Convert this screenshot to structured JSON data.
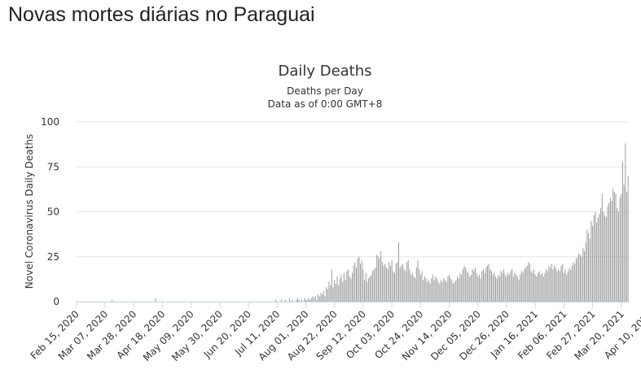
{
  "page": {
    "heading": "Novas mortes diárias no Paraguai"
  },
  "chart_data": {
    "type": "bar",
    "title": "Daily Deaths",
    "subtitle": [
      "Deaths per Day",
      "Data as of 0:00 GMT+8"
    ],
    "xlabel": "",
    "ylabel": "Novel Coronavirus Daily Deaths",
    "ylim": [
      0,
      100
    ],
    "yticks": [
      0,
      25,
      50,
      75,
      100
    ],
    "grid": true,
    "bar_color": "#a0a0a0",
    "start_date": "2020-02-15",
    "x_tick_labels": [
      "Feb 15, 2020",
      "Mar 07, 2020",
      "Mar 28, 2020",
      "Apr 18, 2020",
      "May 09, 2020",
      "May 30, 2020",
      "Jun 20, 2020",
      "Jul 11, 2020",
      "Aug 01, 2020",
      "Aug 22, 2020",
      "Sep 12, 2020",
      "Oct 03, 2020",
      "Oct 24, 2020",
      "Nov 14, 2020",
      "Dec 05, 2020",
      "Dec 26, 2020",
      "Jan 16, 2021",
      "Feb 06, 2021",
      "Feb 27, 2021",
      "Mar 20, 2021",
      "Apr 10, 2021"
    ],
    "values": [
      0,
      0,
      0,
      0,
      0,
      0,
      0,
      0,
      0,
      0,
      0,
      0,
      0,
      0,
      0,
      0,
      0,
      0,
      0,
      0,
      0,
      0,
      0,
      0,
      0,
      0,
      1,
      0,
      0,
      0,
      0,
      0,
      0,
      0,
      0,
      0,
      0,
      0,
      0,
      0,
      0,
      0,
      0,
      0,
      0,
      0,
      0,
      0,
      0,
      0,
      0,
      0,
      0,
      0,
      0,
      0,
      0,
      0,
      2,
      0,
      0,
      0,
      0,
      0,
      0,
      0,
      0,
      0,
      0,
      0,
      0,
      0,
      0,
      0,
      0,
      0,
      0,
      0,
      0,
      0,
      0,
      0,
      0,
      0,
      0,
      0,
      0,
      0,
      0,
      0,
      0,
      0,
      0,
      0,
      0,
      0,
      0,
      0,
      0,
      0,
      0,
      0,
      0,
      0,
      0,
      0,
      0,
      0,
      0,
      0,
      0,
      0,
      0,
      0,
      0,
      0,
      0,
      0,
      0,
      0,
      0,
      0,
      0,
      0,
      0,
      0,
      0,
      0,
      0,
      0,
      0,
      0,
      0,
      0,
      0,
      0,
      0,
      0,
      0,
      0,
      0,
      0,
      0,
      0,
      0,
      0,
      1,
      0,
      0,
      0,
      1,
      0,
      0,
      1,
      0,
      0,
      2,
      0,
      1,
      0,
      0,
      1,
      2,
      1,
      0,
      1,
      0,
      2,
      1,
      1,
      2,
      1,
      2,
      3,
      2,
      3,
      1,
      4,
      3,
      5,
      4,
      6,
      3,
      8,
      7,
      11,
      9,
      18,
      8,
      12,
      10,
      14,
      9,
      13,
      15,
      11,
      16,
      12,
      17,
      18,
      14,
      13,
      16,
      20,
      22,
      19,
      24,
      25,
      21,
      23,
      18,
      12,
      16,
      11,
      13,
      14,
      15,
      17,
      18,
      19,
      26,
      25,
      24,
      28,
      22,
      20,
      21,
      19,
      18,
      22,
      20,
      23,
      17,
      16,
      21,
      22,
      33,
      19,
      20,
      21,
      18,
      17,
      22,
      23,
      18,
      15,
      16,
      14,
      13,
      19,
      23,
      18,
      15,
      17,
      12,
      14,
      13,
      11,
      12,
      10,
      13,
      15,
      12,
      14,
      13,
      11,
      10,
      12,
      11,
      13,
      12,
      11,
      14,
      15,
      13,
      12,
      10,
      11,
      12,
      14,
      13,
      16,
      15,
      18,
      20,
      19,
      17,
      16,
      14,
      15,
      18,
      17,
      19,
      16,
      14,
      15,
      13,
      17,
      18,
      16,
      19,
      20,
      21,
      18,
      17,
      15,
      16,
      14,
      13,
      15,
      14,
      17,
      16,
      18,
      15,
      14,
      16,
      15,
      17,
      18,
      14,
      16,
      15,
      14,
      12,
      15,
      17,
      16,
      18,
      19,
      20,
      22,
      21,
      17,
      16,
      18,
      15,
      14,
      16,
      17,
      15,
      16,
      14,
      16,
      18,
      17,
      20,
      19,
      21,
      18,
      20,
      19,
      17,
      18,
      17,
      20,
      21,
      16,
      18,
      15,
      17,
      19,
      18,
      20,
      22,
      21,
      24,
      25,
      27,
      26,
      25,
      30,
      28,
      33,
      40,
      38,
      35,
      45,
      42,
      48,
      50,
      44,
      47,
      49,
      52,
      60,
      50,
      48,
      47,
      53,
      55,
      58,
      56,
      63,
      61,
      60,
      52,
      50,
      58,
      60,
      78,
      65,
      88,
      61,
      70
    ]
  }
}
